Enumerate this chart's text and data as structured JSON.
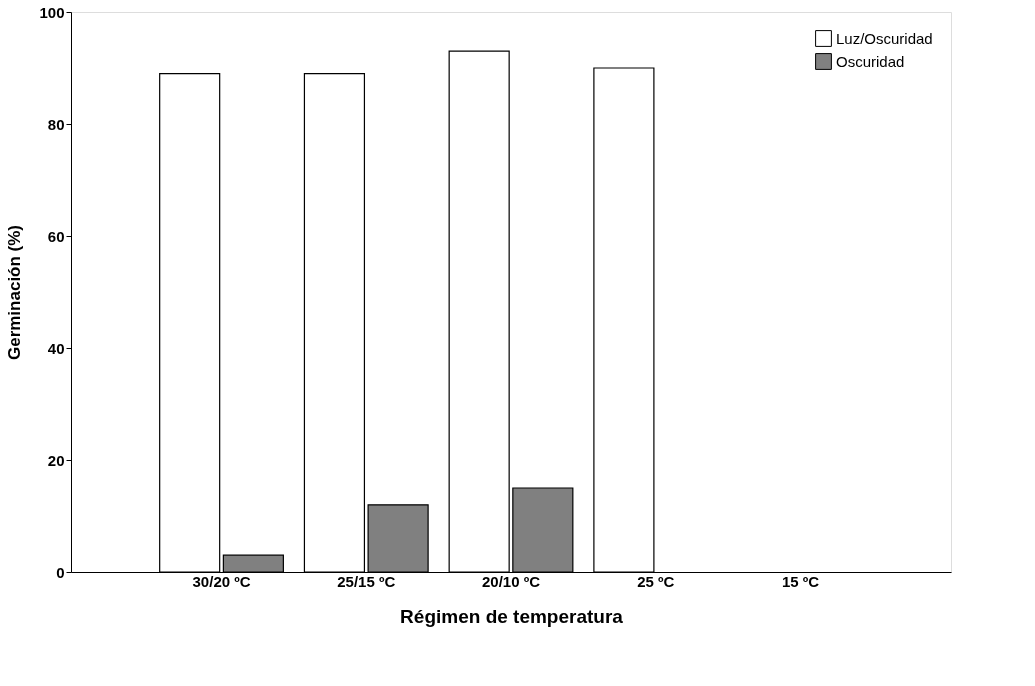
{
  "chart_data": {
    "type": "bar",
    "xlabel": "Régimen de temperatura",
    "ylabel": "Germinación (%)",
    "categories": [
      "30/20 ºC",
      "25/15 ºC",
      "20/10 ºC",
      "25 ºC",
      "15 ºC"
    ],
    "series": [
      {
        "name": "Luz/Oscuridad",
        "color": "#ffffff",
        "values": [
          89,
          89,
          93,
          90,
          null
        ]
      },
      {
        "name": "Oscuridad",
        "color": "#808080",
        "values": [
          3,
          12,
          15,
          null,
          null
        ]
      }
    ],
    "ylim": [
      0,
      100
    ],
    "yticks": [
      0,
      20,
      40,
      60,
      80,
      100
    ],
    "grid": false,
    "legend": "top right"
  }
}
